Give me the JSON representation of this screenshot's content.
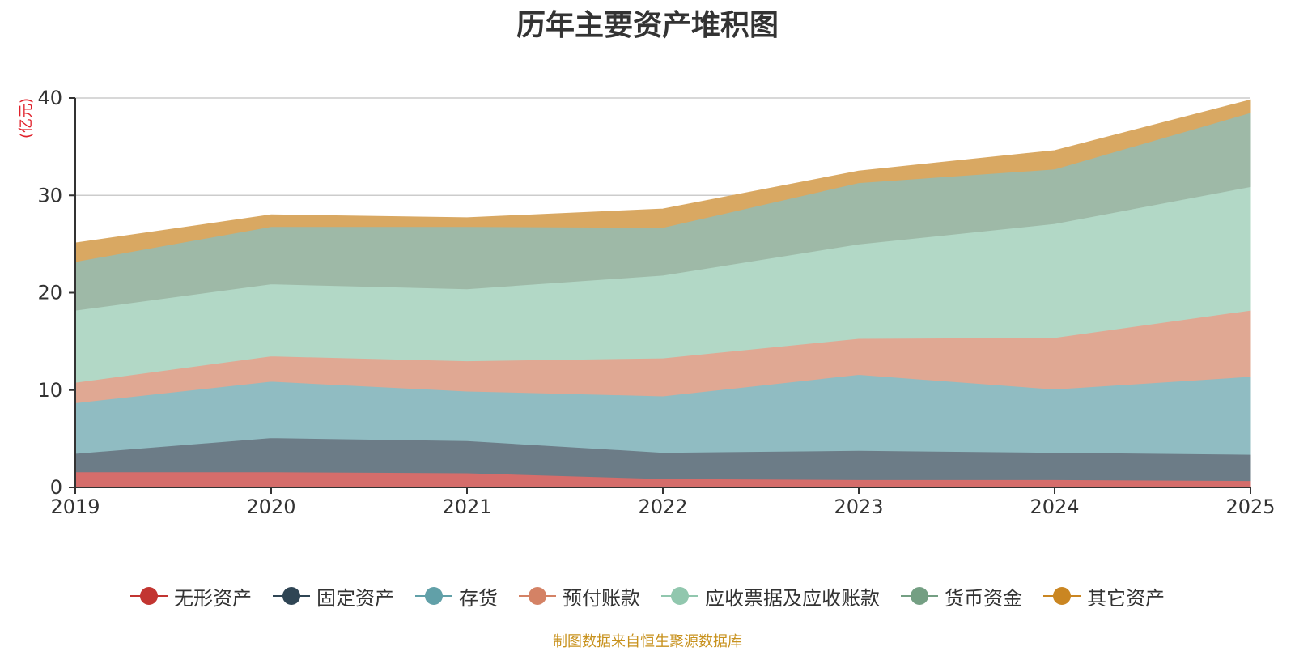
{
  "chart_data": {
    "type": "area",
    "stacked": true,
    "title": "历年主要资产堆积图",
    "unit_label": "(亿元)",
    "x": [
      "2019",
      "2020",
      "2021",
      "2022",
      "2023",
      "2024",
      "2025"
    ],
    "ylim": [
      0,
      40
    ],
    "yticks": [
      0,
      10,
      20,
      30,
      40
    ],
    "grid": true,
    "legend_position": "bottom",
    "series": [
      {
        "name": "无形资产",
        "color": "#c23531",
        "fill": "#d56d6b",
        "values": [
          1.6,
          1.6,
          1.5,
          0.9,
          0.8,
          0.8,
          0.7
        ]
      },
      {
        "name": "固定资产",
        "color": "#2f4554",
        "fill": "#6c7c87",
        "values": [
          1.9,
          3.5,
          3.3,
          2.7,
          3.0,
          2.8,
          2.7
        ]
      },
      {
        "name": "存货",
        "color": "#61a0a8",
        "fill": "#90bcc2",
        "values": [
          5.2,
          5.8,
          5.1,
          5.8,
          7.8,
          6.5,
          8.0
        ]
      },
      {
        "name": "预付账款",
        "color": "#d48265",
        "fill": "#e0a893",
        "values": [
          2.1,
          2.6,
          3.1,
          3.9,
          3.7,
          5.3,
          6.8
        ]
      },
      {
        "name": "应收票据及应收账款",
        "color": "#91c7ae",
        "fill": "#b2d8c6",
        "values": [
          7.4,
          7.4,
          7.4,
          8.5,
          9.7,
          11.7,
          12.7
        ]
      },
      {
        "name": "货币资金",
        "color": "#749f83",
        "fill": "#9eb9a7",
        "values": [
          5.0,
          5.9,
          6.4,
          4.9,
          6.3,
          5.6,
          7.6
        ]
      },
      {
        "name": "其它资产",
        "color": "#ca8622",
        "fill": "#d9a862",
        "values": [
          1.9,
          1.2,
          0.9,
          1.9,
          1.2,
          1.9,
          1.3
        ]
      }
    ]
  },
  "footer": {
    "source_note": "制图数据来自恒生聚源数据库"
  }
}
